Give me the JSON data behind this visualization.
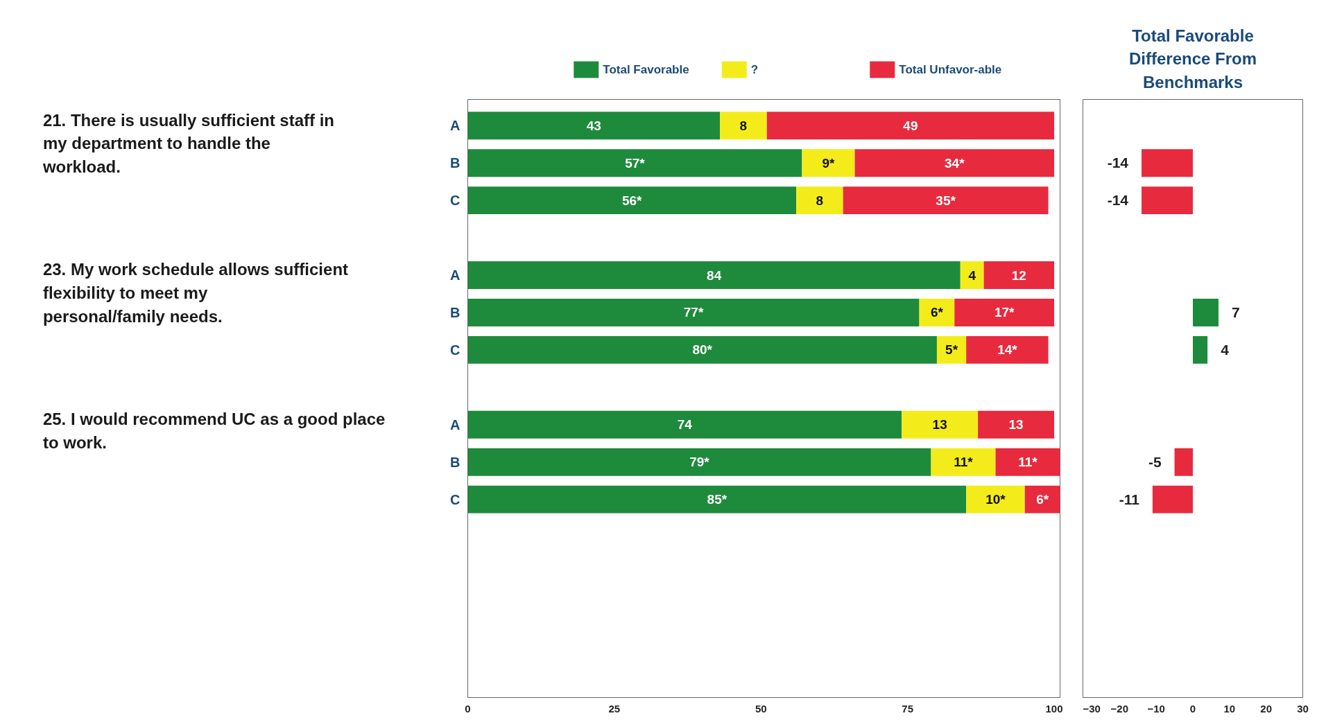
{
  "chart_data": [
    {
      "type": "bar",
      "orientation": "horizontal",
      "stacked": true,
      "categories": [
        "A",
        "B",
        "C",
        null,
        "A",
        "B",
        "C",
        null,
        "A",
        "B",
        "C",
        null,
        null,
        null,
        null,
        null
      ],
      "series": [
        {
          "name": "Total Favorable",
          "color": "#1e8a3c",
          "values": [
            43,
            57,
            56,
            null,
            84,
            77,
            80,
            null,
            74,
            79,
            85,
            null,
            null,
            null,
            null,
            null
          ],
          "value_labels": [
            "43",
            "57*",
            "56*",
            null,
            "84",
            "77*",
            "80*",
            null,
            "74",
            "79*",
            "85*",
            null,
            null,
            null,
            null,
            null
          ]
        },
        {
          "name": "?",
          "color": "#f4ec1a",
          "values": [
            8,
            9,
            8,
            null,
            4,
            6,
            5,
            null,
            13,
            11,
            10,
            null,
            null,
            null,
            null,
            null
          ],
          "value_labels": [
            "8",
            "9*",
            "8",
            null,
            "4",
            "6*",
            "5*",
            null,
            "13",
            "11*",
            "10*",
            null,
            null,
            null,
            null,
            null
          ]
        },
        {
          "name": "Total Unfavor-able",
          "color": "#e82a3e",
          "values": [
            49,
            34,
            35,
            null,
            12,
            17,
            14,
            null,
            13,
            11,
            6,
            null,
            null,
            null,
            null,
            null
          ],
          "value_labels": [
            "49",
            "34*",
            "35*",
            null,
            "12",
            "17*",
            "14*",
            null,
            "13",
            "11*",
            "6*",
            null,
            null,
            null,
            null,
            null
          ]
        }
      ],
      "xlim": [
        0,
        101
      ],
      "xticks": [
        0,
        25,
        50,
        75,
        100
      ],
      "grid": false,
      "legend": "top",
      "annotations": [
        "21. There is usually sufficient staff in my department to handle the workload.",
        "23. My work schedule allows sufficient flexibility to meet my personal/family needs.",
        "25. I would recommend UC as a good place to work."
      ]
    },
    {
      "type": "bar",
      "orientation": "horizontal",
      "title": "Total Favorable Difference From Benchmarks",
      "categories": [
        null,
        null,
        null,
        null,
        null,
        null,
        null,
        null,
        null,
        null,
        null,
        null,
        null,
        null,
        null,
        null
      ],
      "values": [
        null,
        -14,
        -14,
        null,
        null,
        7,
        4,
        null,
        null,
        -5,
        -11,
        null,
        null,
        null,
        null,
        null
      ],
      "colors": [
        null,
        "#e82a3e",
        "#e82a3e",
        null,
        null,
        "#1e8a3c",
        "#1e8a3c",
        null,
        null,
        "#e82a3e",
        "#e82a3e",
        null,
        null,
        null,
        null,
        null
      ],
      "xlim": [
        -30,
        30
      ],
      "xticks": [
        -30,
        -20,
        -10,
        0,
        10,
        20,
        30
      ],
      "grid": false,
      "data_labels": true,
      "tick_labels": "x"
    }
  ]
}
